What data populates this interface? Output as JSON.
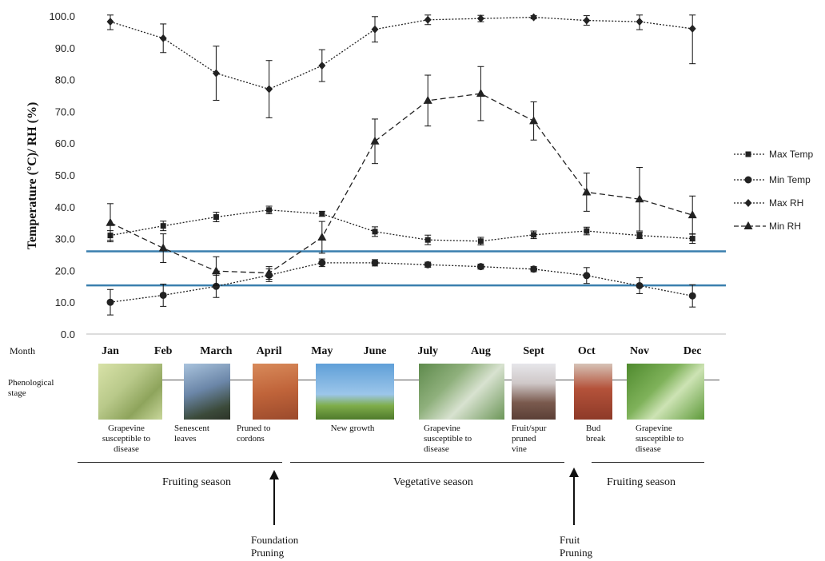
{
  "chart_data": {
    "type": "line",
    "ylabel": "Temperature (°C)/ RH (%)",
    "ylim": [
      0,
      100
    ],
    "yticks": [
      "0.0",
      "10.0",
      "20.0",
      "30.0",
      "40.0",
      "50.0",
      "60.0",
      "70.0",
      "80.0",
      "90.0",
      "100.0"
    ],
    "categories_label": "Month",
    "categories": [
      "Jan",
      "Feb",
      "March",
      "April",
      "May",
      "June",
      "July",
      "Aug",
      "Sept",
      "Oct",
      "Nov",
      "Dec"
    ],
    "reference_lines": [
      26.0,
      15.3
    ],
    "legend_position": "right",
    "series": [
      {
        "name": "Max Temp",
        "marker": "square",
        "dash": "dotted",
        "values": [
          31.0,
          34.0,
          36.8,
          39.0,
          37.8,
          32.2,
          29.6,
          29.2,
          31.2,
          32.4,
          31.0,
          30.0
        ],
        "errors": [
          1.5,
          1.5,
          1.5,
          1.2,
          0.8,
          1.5,
          1.5,
          1.2,
          1.2,
          1.2,
          1.0,
          1.5
        ]
      },
      {
        "name": "Min Temp",
        "marker": "circle",
        "dash": "dotted",
        "values": [
          10.0,
          12.2,
          15.0,
          18.5,
          22.4,
          22.4,
          21.8,
          21.2,
          20.4,
          18.4,
          15.2,
          12.0
        ],
        "errors": [
          4.0,
          3.5,
          3.5,
          2.0,
          1.2,
          1.0,
          0.8,
          0.8,
          0.8,
          2.5,
          2.5,
          3.5
        ]
      },
      {
        "name": "Max RH",
        "marker": "diamond",
        "dash": "dotted",
        "values": [
          98.2,
          93.0,
          82.0,
          77.0,
          84.4,
          95.8,
          98.8,
          99.2,
          99.6,
          98.6,
          98.2,
          96.0
        ],
        "errors": [
          2.5,
          4.5,
          8.5,
          9.0,
          5.0,
          4.0,
          1.5,
          1.0,
          0.5,
          1.5,
          2.5,
          11.0
        ]
      },
      {
        "name": "Min RH",
        "marker": "triangle",
        "dash": "dashed",
        "values": [
          35.0,
          27.0,
          19.8,
          19.2,
          30.4,
          60.6,
          73.4,
          75.6,
          67.0,
          44.6,
          42.4,
          37.4
        ],
        "errors": [
          6.0,
          4.5,
          4.5,
          2.0,
          5.0,
          7.0,
          8.0,
          8.5,
          6.0,
          6.0,
          10.0,
          6.0
        ]
      }
    ]
  },
  "phenology": {
    "stage_label": "Phenological stage",
    "captions": [
      "Grapevine susceptible to disease",
      "Senescent leaves",
      "Pruned to cordons",
      "New growth",
      "Grapevine susceptible to disease",
      "Fruit/spur pruned vine",
      "Bud break",
      "Grapevine susceptible to disease"
    ],
    "seasons": [
      "Fruiting season",
      "Vegetative season",
      "Fruiting season"
    ],
    "events": [
      "Foundation Pruning",
      "Fruit Pruning"
    ]
  },
  "colors": {
    "reference_line": "#3a7fae",
    "series_line": "#222222",
    "photo_grapes": "#b9c98a",
    "photo_senescent": "#6b86a8",
    "photo_cordons": "#c0643a",
    "photo_newgrowth": "#6aa6d6",
    "photo_leaf": "#8fb07c",
    "photo_pruned": "#7a5a4e",
    "photo_budbreak": "#b4523a",
    "photo_canopy": "#7fb25a"
  }
}
